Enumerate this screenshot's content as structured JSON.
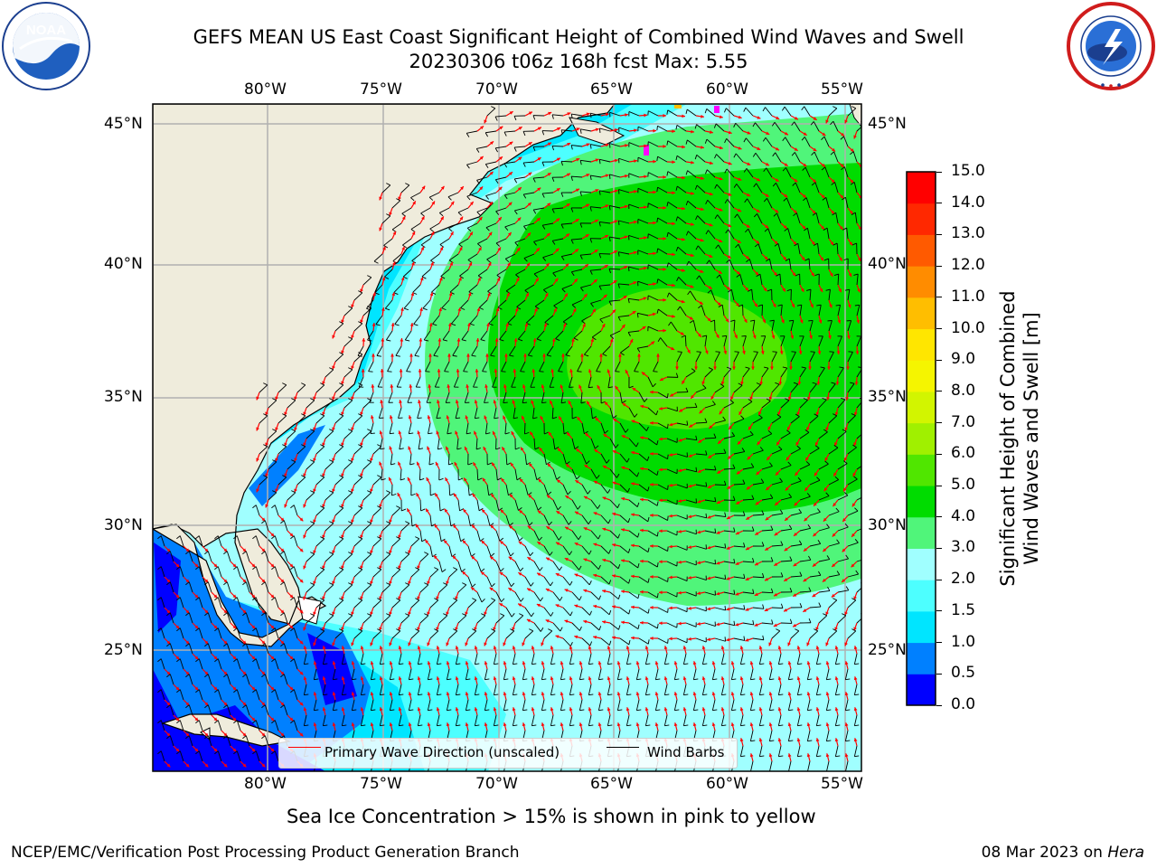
{
  "title": {
    "line1": "GEFS MEAN US East Coast Significant Height of Combined Wind Waves and Swell",
    "line2": "20230306 t06z 168h fcst   Max: 5.55"
  },
  "logos": {
    "left": {
      "name": "NOAA",
      "text": "NOAA"
    },
    "right": {
      "name": "National Weather Service"
    }
  },
  "map": {
    "lon_labels": [
      "80°W",
      "75°W",
      "70°W",
      "65°W",
      "60°W",
      "55°W"
    ],
    "lat_labels": [
      "45°N",
      "40°N",
      "35°N",
      "30°N",
      "25°N"
    ],
    "land_color": "#efecdc",
    "grid_color": "#b0b0b0"
  },
  "legend": {
    "wave_direction": "Primary Wave Direction (unscaled)",
    "wind_barbs": "Wind Barbs",
    "wave_color": "#ff0000",
    "barb_color": "#000000"
  },
  "colorbar": {
    "title_line1": "Significant Height of Combined",
    "title_line2": "Wind Waves and Swell [m]",
    "ticks": [
      "0.0",
      "0.5",
      "1.0",
      "1.5",
      "2.0",
      "3.0",
      "4.0",
      "5.0",
      "6.0",
      "7.0",
      "8.0",
      "9.0",
      "10.0",
      "11.0",
      "12.0",
      "13.0",
      "14.0",
      "15.0"
    ],
    "colors": [
      "#0000ff",
      "#0080ff",
      "#00e5ff",
      "#4dffff",
      "#a0ffff",
      "#50f57a",
      "#00dc00",
      "#50e600",
      "#a0f000",
      "#d2f500",
      "#f5f500",
      "#ffe600",
      "#ffbe00",
      "#ff8c00",
      "#ff5a00",
      "#ff2800",
      "#ff0000"
    ]
  },
  "notes": {
    "sea_ice": "Sea Ice Concentration > 15% is shown in pink to yellow"
  },
  "footer": {
    "left": "NCEP/EMC/Verification Post Processing Product Generation Branch",
    "date": "08 Mar 2023 on ",
    "machine": "Hera"
  }
}
